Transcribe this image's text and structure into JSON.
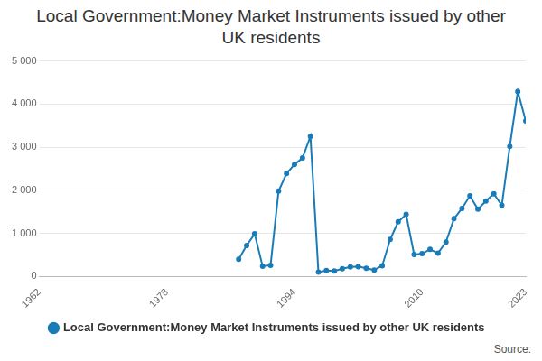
{
  "chart_data": {
    "type": "line",
    "title": "Local Government:Money Market Instruments issued by other UK residents",
    "source": "Source:",
    "x": [
      1987,
      1988,
      1989,
      1990,
      1991,
      1992,
      1993,
      1994,
      1995,
      1996,
      1997,
      1998,
      1999,
      2000,
      2001,
      2002,
      2003,
      2004,
      2005,
      2006,
      2007,
      2008,
      2009,
      2010,
      2011,
      2012,
      2013,
      2014,
      2015,
      2016,
      2017,
      2018,
      2019,
      2020,
      2021,
      2022,
      2023
    ],
    "series": [
      {
        "name": "Local Government:Money Market Instruments issued by other UK residents",
        "color": "#1a7bb9",
        "values": [
          400,
          720,
          990,
          240,
          260,
          1980,
          2390,
          2600,
          2750,
          3250,
          100,
          140,
          130,
          180,
          220,
          230,
          190,
          150,
          250,
          860,
          1270,
          1440,
          510,
          530,
          630,
          540,
          800,
          1340,
          1580,
          1870,
          1560,
          1750,
          1920,
          1650,
          3020,
          4290,
          3610
        ]
      }
    ],
    "xlim": [
      1962,
      2023
    ],
    "xticks": [
      1962,
      1978,
      1994,
      2010,
      2023
    ],
    "ylim": [
      0,
      5000
    ],
    "yticks": [
      0,
      {
        "value": 1000,
        "label": "1 000"
      },
      {
        "value": 2000,
        "label": "2 000"
      },
      {
        "value": 3000,
        "label": "3 000"
      },
      {
        "value": 4000,
        "label": "4 000"
      },
      {
        "value": 5000,
        "label": "5 000"
      }
    ],
    "grid": true,
    "legend": "bottom",
    "marker": "circle"
  }
}
